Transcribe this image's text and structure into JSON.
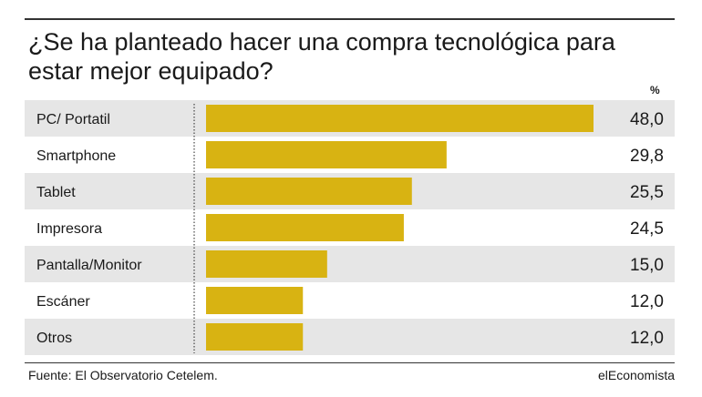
{
  "title": "¿Se ha planteado hacer una compra tecnológica para estar mejor equipado?",
  "unit_label": "%",
  "source": "Fuente: El Observatorio Cetelem.",
  "brand": "elEconomista",
  "colors": {
    "bar": "#d8b312",
    "row_shade": "#e6e6e6",
    "text": "#1a1a1a"
  },
  "chart_data": {
    "type": "bar",
    "orientation": "horizontal",
    "title": "¿Se ha planteado hacer una compra tecnológica para estar mejor equipado?",
    "categories": [
      "PC/ Portatil",
      "Smartphone",
      "Tablet",
      "Impresora",
      "Pantalla/Monitor",
      "Escáner",
      "Otros"
    ],
    "values": [
      48.0,
      29.8,
      25.5,
      24.5,
      15.0,
      12.0,
      12.0
    ],
    "value_labels": [
      "48,0",
      "29,8",
      "25,5",
      "24,5",
      "15,0",
      "12,0",
      "12,0"
    ],
    "xlim": [
      0,
      48
    ],
    "unit": "%",
    "grid": false,
    "legend": "none"
  }
}
